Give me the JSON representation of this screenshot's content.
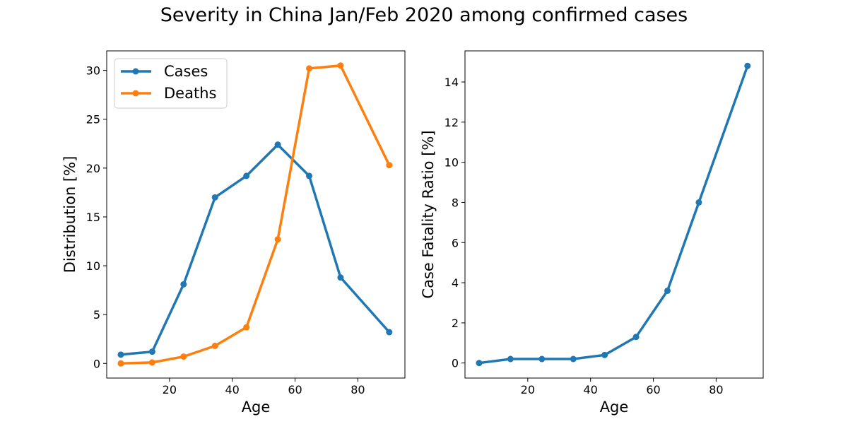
{
  "figure": {
    "title": "Severity in China Jan/Feb 2020 among confirmed cases"
  },
  "chart_data": [
    {
      "type": "line",
      "xlabel": "Age",
      "ylabel": "Distribution [%]",
      "xlim": [
        0,
        95
      ],
      "ylim": [
        -1.5,
        32
      ],
      "xticks": [
        20,
        40,
        60,
        80
      ],
      "yticks": [
        0,
        5,
        10,
        15,
        20,
        25,
        30
      ],
      "grid": false,
      "legend_position": "upper-left",
      "x": [
        4.5,
        14.5,
        24.5,
        34.5,
        44.5,
        54.5,
        64.5,
        74.5,
        90
      ],
      "series": [
        {
          "name": "Cases",
          "color": "#1f77b4",
          "values": [
            0.9,
            1.2,
            8.1,
            17.0,
            19.2,
            22.4,
            19.2,
            8.8,
            3.2
          ]
        },
        {
          "name": "Deaths",
          "color": "#ff7f0e",
          "values": [
            0.0,
            0.1,
            0.7,
            1.8,
            3.7,
            12.7,
            30.2,
            30.5,
            20.3
          ]
        }
      ]
    },
    {
      "type": "line",
      "xlabel": "Age",
      "ylabel": "Case Fatality Ratio [%]",
      "xlim": [
        0,
        95
      ],
      "ylim": [
        -0.75,
        15.55
      ],
      "xticks": [
        20,
        40,
        60,
        80
      ],
      "yticks": [
        0,
        2,
        4,
        6,
        8,
        10,
        12,
        14
      ],
      "grid": false,
      "x": [
        4.5,
        14.5,
        24.5,
        34.5,
        44.5,
        54.5,
        64.5,
        74.5,
        90
      ],
      "series": [
        {
          "color": "#1f77b4",
          "values": [
            0.0,
            0.2,
            0.2,
            0.2,
            0.4,
            1.3,
            3.6,
            8.0,
            14.8
          ]
        }
      ]
    }
  ]
}
